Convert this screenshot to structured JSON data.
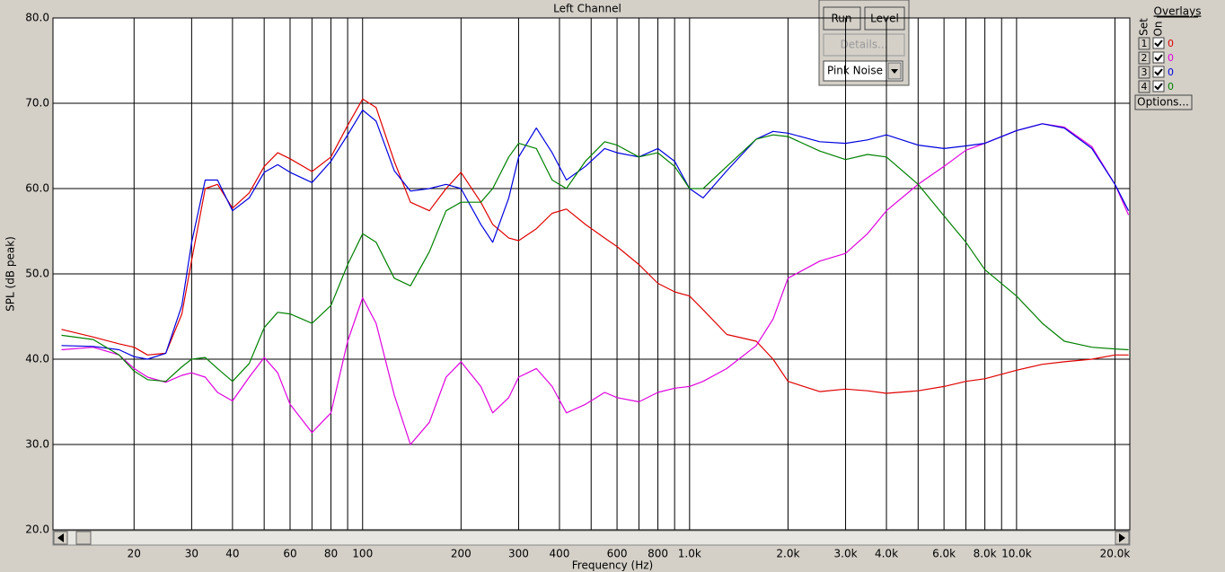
{
  "chart_data": {
    "type": "line",
    "title": "Left Channel",
    "x_label": "Frequency (Hz)",
    "y_label": "SPL (dB peak)",
    "x_scale": "log",
    "grid": true,
    "xlim": [
      11.3,
      22200
    ],
    "ylim": [
      20,
      80
    ],
    "xticks": [
      20,
      30,
      40,
      60,
      80,
      100,
      200,
      300,
      400,
      600,
      800,
      {
        "value": 1000,
        "label": "1.0k"
      },
      {
        "value": 2000,
        "label": "2.0k"
      },
      {
        "value": 3000,
        "label": "3.0k"
      },
      {
        "value": 4000,
        "label": "4.0k"
      },
      {
        "value": 6000,
        "label": "6.0k"
      },
      {
        "value": 8000,
        "label": "8.0k"
      },
      {
        "value": 10000,
        "label": "10.0k"
      },
      {
        "value": 20000,
        "label": "20.0k"
      }
    ],
    "xminor": [
      50,
      70,
      90,
      500,
      700,
      900,
      5000,
      7000,
      9000
    ],
    "yticks": [
      {
        "value": 20,
        "label": "20.0"
      },
      {
        "value": 30,
        "label": "30.0"
      },
      {
        "value": 40,
        "label": "40.0"
      },
      {
        "value": 50,
        "label": "50.0"
      },
      {
        "value": 60,
        "label": "60.0"
      },
      {
        "value": 70,
        "label": "70.0"
      },
      {
        "value": 80,
        "label": "80.0"
      }
    ],
    "x": [
      12,
      15,
      18,
      20,
      22,
      25,
      28,
      30,
      33,
      36,
      40,
      45,
      50,
      55,
      60,
      70,
      80,
      90,
      100,
      110,
      125,
      140,
      160,
      180,
      200,
      230,
      250,
      280,
      300,
      340,
      380,
      420,
      480,
      550,
      600,
      700,
      800,
      900,
      1000,
      1100,
      1300,
      1600,
      1800,
      2000,
      2500,
      3000,
      3500,
      4000,
      5000,
      6000,
      7000,
      8000,
      10000,
      12000,
      14000,
      17000,
      20000,
      22000
    ],
    "series": [
      {
        "color": "#e00000",
        "values": [
          43.5,
          42.6,
          41.8,
          41.4,
          40.5,
          40.7,
          45.3,
          51.6,
          60,
          60.5,
          57.7,
          59.5,
          62.6,
          64.2,
          63.5,
          62,
          63.7,
          67.4,
          70.5,
          69.5,
          63.2,
          58.4,
          57.4,
          60,
          61.9,
          58.4,
          55.8,
          54.2,
          53.9,
          55.3,
          57.1,
          57.6,
          55.8,
          54.2,
          53.2,
          51.1,
          48.9,
          47.9,
          47.4,
          45.8,
          42.9,
          42.1,
          40,
          37.4,
          36.2,
          36.5,
          36.3,
          36,
          36.3,
          36.8,
          37.4,
          37.7,
          38.7,
          39.4,
          39.7,
          40,
          40.5,
          40.5
        ]
      },
      {
        "color": "#e000e0",
        "values": [
          41.1,
          41.4,
          40.5,
          38.9,
          37.9,
          37.3,
          38.1,
          38.4,
          37.9,
          36.1,
          35.1,
          37.9,
          40.2,
          38.4,
          34.7,
          31.4,
          33.7,
          42.1,
          47.2,
          44.2,
          35.8,
          30,
          32.6,
          37.9,
          39.7,
          36.8,
          33.7,
          35.5,
          37.9,
          38.9,
          36.8,
          33.7,
          34.7,
          36.1,
          35.5,
          35,
          36.1,
          36.6,
          36.8,
          37.4,
          38.9,
          41.6,
          44.7,
          49.5,
          51.5,
          52.4,
          54.7,
          57.4,
          60.5,
          62.6,
          64.5,
          65.3,
          66.8,
          67.6,
          67.2,
          64.9,
          60.5,
          56.9
        ]
      },
      {
        "color": "#0000e0",
        "values": [
          41.6,
          41.5,
          41.1,
          40.3,
          40,
          40.7,
          46.3,
          53.7,
          61,
          61,
          57.4,
          58.9,
          61.9,
          62.8,
          61.9,
          60.7,
          63.2,
          66.3,
          69.2,
          67.9,
          62.1,
          59.7,
          60,
          60.5,
          60,
          55.8,
          53.7,
          58.9,
          63.7,
          67.1,
          64.2,
          61,
          62.6,
          64.7,
          64.2,
          63.7,
          64.7,
          63.2,
          60,
          58.9,
          62.1,
          65.8,
          66.7,
          66.5,
          65.5,
          65.3,
          65.7,
          66.3,
          65.1,
          64.7,
          65,
          65.3,
          66.8,
          67.6,
          67.1,
          64.7,
          60.5,
          57.4
        ]
      },
      {
        "color": "#008000",
        "values": [
          42.8,
          42.3,
          40.5,
          38.6,
          37.6,
          37.4,
          39.1,
          40,
          40.2,
          38.9,
          37.4,
          39.5,
          43.7,
          45.5,
          45.3,
          44.2,
          46.3,
          51.1,
          54.7,
          53.7,
          49.5,
          48.6,
          52.6,
          57.4,
          58.4,
          58.4,
          60,
          63.7,
          65.3,
          64.7,
          61,
          60,
          63.2,
          65.5,
          65.1,
          63.7,
          64.2,
          62.6,
          60,
          60,
          62.6,
          65.8,
          66.3,
          66.1,
          64.4,
          63.4,
          64,
          63.7,
          60.5,
          56.8,
          53.7,
          50.5,
          47.4,
          44.2,
          42.1,
          41.4,
          41.2,
          41.1
        ]
      }
    ]
  },
  "ui": {
    "buttons": [
      "Run",
      "Level",
      "Details..."
    ],
    "dropdown": "Pink Noise",
    "overlays": {
      "title": "Overlays",
      "set_header": "Set",
      "on_header": "On",
      "rows": [
        {
          "set": 1,
          "checked": true,
          "value": 0,
          "color": "#e00000"
        },
        {
          "set": 2,
          "checked": true,
          "value": 0,
          "color": "#e000e0"
        },
        {
          "set": 3,
          "checked": true,
          "value": 0,
          "color": "#0000e0"
        },
        {
          "set": 4,
          "checked": true,
          "value": 0,
          "color": "#008000"
        }
      ],
      "options": "Options..."
    }
  }
}
